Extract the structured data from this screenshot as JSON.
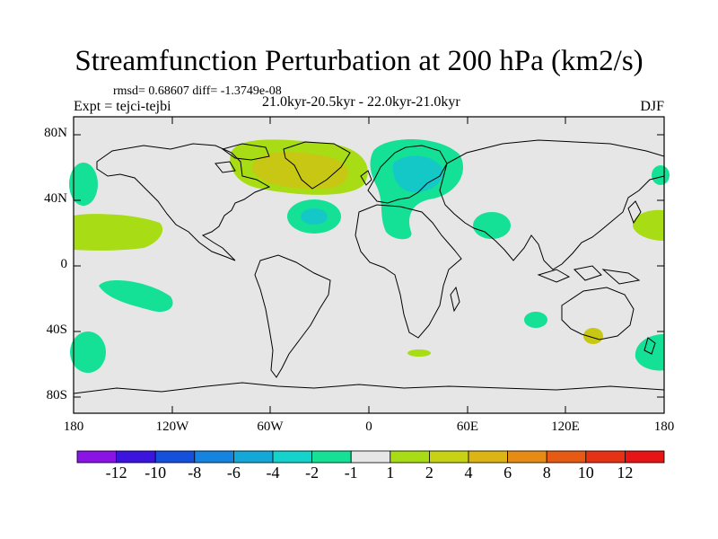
{
  "title": "Streamfunction Perturbation at 200 hPa (km2/s)",
  "stats": "rmsd= 0.68607 diff= -1.3749e-08",
  "left_label": "Expt = tejci-tejbi",
  "center_label": "21.0kyr-20.5kyr - 22.0kyr-21.0kyr",
  "right_label": "DJF",
  "lat_ticks": [
    "80N",
    "40N",
    "0",
    "40S",
    "80S"
  ],
  "lon_ticks": [
    "180",
    "120W",
    "60W",
    "0",
    "60E",
    "120E",
    "180"
  ],
  "colorbar": {
    "labels": [
      "-12",
      "-10",
      "-8",
      "-6",
      "-4",
      "-2",
      "-1",
      "1",
      "2",
      "4",
      "6",
      "8",
      "10",
      "12"
    ],
    "colors": [
      "#8a14e6",
      "#3c14e0",
      "#1450dc",
      "#1484e0",
      "#14a8d8",
      "#14d2cc",
      "#14e096",
      "#e6e6e6",
      "#a8dc14",
      "#c8d214",
      "#dcb414",
      "#e68c14",
      "#e65a14",
      "#e63214",
      "#e61414"
    ]
  },
  "map_colors": {
    "background": "#e6e6e6",
    "green_pos": "#a8dc14",
    "olive_pos": "#c8c814",
    "teal_neg": "#14e096",
    "cyan_neg": "#14c8c8"
  }
}
